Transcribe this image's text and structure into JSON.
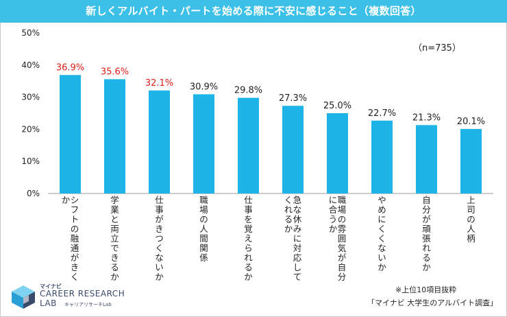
{
  "title": "新しくアルバイト・パートを始める際に不安に感じること（複数回答）",
  "sample_note": "（n=735）",
  "footnote_top": "※上位10項目抜粋",
  "footnote_source": "「マイナビ 大学生のアルバイト調査」",
  "logo": {
    "mynavi": "マイナビ",
    "line1": "CAREER RESEARCH",
    "line2": "LAB",
    "sub": "キャリアリサーチLab"
  },
  "colors": {
    "bar": "#1eb4e8",
    "title_bg": "#3cc0e8",
    "highlight_label": "#e0201a",
    "normal_label": "#222222"
  },
  "chart_data": {
    "type": "bar",
    "categories": [
      "シフトの融通がきくか",
      "学業と両立できるか",
      "仕事がきつくないか",
      "職場の人間関係",
      "仕事を覚えられるか",
      "急な休みに対応してくれるか",
      "職場の雰囲気が自分に合うか",
      "やめにくくないか",
      "自分が頑張れるか",
      "上司の人柄"
    ],
    "category_lines": [
      [
        "シフトの融通がきく",
        "か"
      ],
      [
        "学業と両立できるか"
      ],
      [
        "仕事がきつくないか"
      ],
      [
        "職場の人間関係"
      ],
      [
        "仕事を覚えられるか"
      ],
      [
        "急な休みに対応して",
        "くれるか"
      ],
      [
        "職場の雰囲気が自分",
        "に合うか"
      ],
      [
        "やめにくくないか"
      ],
      [
        "自分が頑張れるか"
      ],
      [
        "上司の人柄"
      ]
    ],
    "values": [
      36.9,
      35.6,
      32.1,
      30.9,
      29.8,
      27.3,
      25.0,
      22.7,
      21.3,
      20.1
    ],
    "value_labels": [
      "36.9%",
      "35.6%",
      "32.1%",
      "30.9%",
      "29.8%",
      "27.3%",
      "25.0%",
      "22.7%",
      "21.3%",
      "20.1%"
    ],
    "highlighted": [
      true,
      true,
      true,
      false,
      false,
      false,
      false,
      false,
      false,
      false
    ],
    "ylim": [
      0,
      50
    ],
    "yticks": [
      0,
      10,
      20,
      30,
      40,
      50
    ],
    "ytick_labels": [
      "0%",
      "10%",
      "20%",
      "30%",
      "40%",
      "50%"
    ],
    "grid": false
  }
}
